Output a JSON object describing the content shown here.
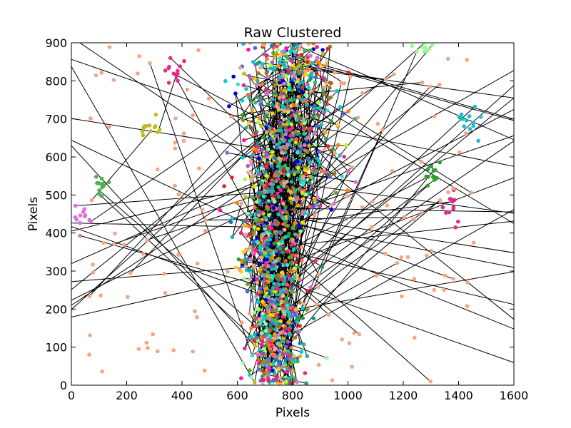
{
  "chart_data": {
    "type": "scatter",
    "title": "Raw Clustered",
    "xlabel": "Pixels",
    "ylabel": "Pixels",
    "xlim": [
      0,
      1600
    ],
    "ylim": [
      0,
      900
    ],
    "xticks": [
      0,
      200,
      400,
      600,
      800,
      1000,
      1200,
      1400,
      1600
    ],
    "yticks": [
      0,
      100,
      200,
      300,
      400,
      500,
      600,
      700,
      800,
      900
    ],
    "grid": false,
    "legend": "none",
    "connecting_line_color": "#000000",
    "marker_colors": [
      "#f4a582",
      "#1b9e77",
      "#7570b3",
      "#e7298a",
      "#66a61e",
      "#e6ab02",
      "#a6761d",
      "#17becf",
      "#d62728",
      "#2ca02c",
      "#9467bd",
      "#1f77b4",
      "#ff7f0e",
      "#8c564b",
      "#bcbd22",
      "#00ced1",
      "#3cb371",
      "#ff1493",
      "#4169e1",
      "#98fb98",
      "#da70d6",
      "#20b2aa",
      "#adff2f",
      "#ffd700",
      "#0000cd",
      "#ff6347",
      "#40e0d0"
    ],
    "series_summary": {
      "main_cluster": {
        "x_range": [
          560,
          1080
        ],
        "y_range": [
          0,
          900
        ],
        "description": "dense multicolor point cloud"
      },
      "outlier_groups": [
        {
          "x": 40,
          "y": 440,
          "color": "#da70d6"
        },
        {
          "x": 100,
          "y": 520,
          "color": "#4daf4a"
        },
        {
          "x": 290,
          "y": 675,
          "color": "#bcbd22"
        },
        {
          "x": 380,
          "y": 830,
          "color": "#e7298a"
        },
        {
          "x": 1300,
          "y": 560,
          "color": "#2ca02c"
        },
        {
          "x": 1430,
          "y": 700,
          "color": "#17becf"
        },
        {
          "x": 1280,
          "y": 890,
          "color": "#98fb98"
        },
        {
          "x": 1370,
          "y": 460,
          "color": "#e7298a"
        }
      ]
    }
  }
}
